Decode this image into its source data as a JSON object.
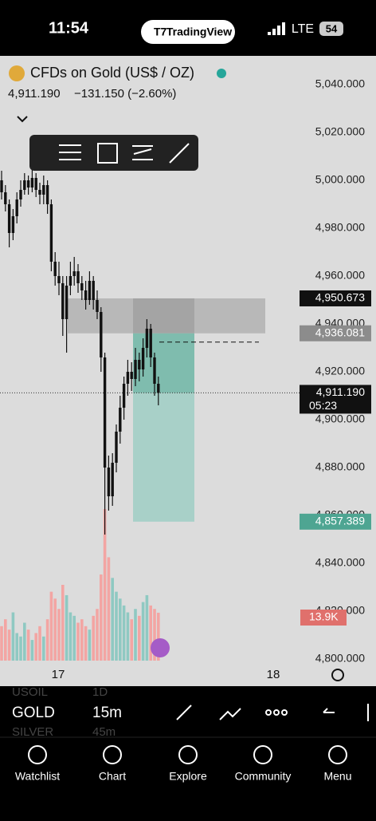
{
  "status_bar": {
    "time": "11:54",
    "app": "TradingView",
    "network": "LTE",
    "battery": "54"
  },
  "symbol": {
    "name": "CFDs on Gold (US$ / OZ)",
    "price": "4,911.190",
    "change": "−131.150 (−2.60%)"
  },
  "chart_data": {
    "type": "candlestick",
    "ylim": [
      4796.667,
      5052
    ],
    "yticks": [
      {
        "value": 5040,
        "label": "5,040.000"
      },
      {
        "value": 5020,
        "label": "5,020.000"
      },
      {
        "value": 5000,
        "label": "5,000.000"
      },
      {
        "value": 4980,
        "label": "4,980.000"
      },
      {
        "value": 4960,
        "label": "4,960.000"
      },
      {
        "value": 4940,
        "label": "4,940.000"
      },
      {
        "value": 4920,
        "label": "4,920.000"
      },
      {
        "value": 4900,
        "label": "4,900.000"
      },
      {
        "value": 4880,
        "label": "4,880.000"
      },
      {
        "value": 4860,
        "label": "4,860.000"
      },
      {
        "value": 4840,
        "label": "4,840.000"
      },
      {
        "value": 4820,
        "label": "4,820.000"
      },
      {
        "value": 4800,
        "label": "4,800.000"
      }
    ],
    "time_labels": [
      "17",
      "18"
    ],
    "open": [
      5000,
      4995,
      4990,
      4978,
      4985,
      4992,
      4996,
      5000,
      4997,
      5001,
      4996,
      4994,
      4998,
      4990,
      4966,
      4960,
      4957,
      4942,
      4956,
      4960,
      4962,
      4957,
      4954,
      4950,
      4958,
      4950,
      4945,
      4926,
      4880,
      4868,
      4882,
      4895,
      4905,
      4915,
      4920,
      4917,
      4925,
      4921,
      4930,
      4938,
      4926,
      4915
    ],
    "high": [
      5004,
      4998,
      4992,
      4988,
      4995,
      5000,
      5003,
      5002,
      5006,
      5003,
      4999,
      5002,
      5000,
      4992,
      4970,
      4966,
      4960,
      4960,
      4966,
      4968,
      4965,
      4960,
      4958,
      4962,
      4960,
      4954,
      4947,
      4928,
      4885,
      4886,
      4898,
      4910,
      4918,
      4925,
      4924,
      4930,
      4928,
      4934,
      4942,
      4940,
      4928,
      4918
    ],
    "low": [
      4992,
      4987,
      4972,
      4975,
      4982,
      4989,
      4994,
      4994,
      4995,
      4993,
      4990,
      4990,
      4986,
      4962,
      4956,
      4952,
      4935,
      4928,
      4952,
      4956,
      4953,
      4950,
      4946,
      4948,
      4946,
      4942,
      4920,
      4852,
      4862,
      4864,
      4878,
      4890,
      4900,
      4910,
      4912,
      4914,
      4916,
      4918,
      4926,
      4922,
      4910,
      4906
    ],
    "close": [
      4995,
      4990,
      4978,
      4985,
      4992,
      4996,
      5000,
      4997,
      5001,
      4996,
      4994,
      4998,
      4990,
      4966,
      4960,
      4957,
      4942,
      4956,
      4960,
      4962,
      4957,
      4954,
      4950,
      4958,
      4950,
      4945,
      4926,
      4880,
      4868,
      4882,
      4895,
      4905,
      4915,
      4920,
      4917,
      4925,
      4921,
      4930,
      4938,
      4926,
      4915,
      4911.19
    ],
    "volume": [
      10,
      12,
      9,
      14,
      8,
      7,
      11,
      9,
      6,
      8,
      10,
      7,
      12,
      20,
      18,
      15,
      22,
      19,
      14,
      13,
      11,
      12,
      10,
      9,
      13,
      15,
      25,
      44,
      30,
      24,
      20,
      18,
      16,
      14,
      12,
      15,
      13,
      17,
      19,
      16,
      15,
      13.9
    ],
    "volume_label": "13.9K",
    "price_labels": [
      {
        "value": 4950.673,
        "label": "4,950.673"
      },
      {
        "value": 4936.081,
        "label": "4,936.081"
      },
      {
        "value": 4911.19,
        "label": "4,911.190",
        "countdown": "05:23"
      },
      {
        "value": 4857.389,
        "label": "4,857.389"
      }
    ]
  },
  "toolbar": {
    "symbols": [
      "USOIL",
      "GOLD",
      "SILVER"
    ],
    "intervals": [
      "1D",
      "15m",
      "45m"
    ]
  },
  "nav": [
    "Watchlist",
    "Chart",
    "Explore",
    "Community",
    "Menu"
  ]
}
